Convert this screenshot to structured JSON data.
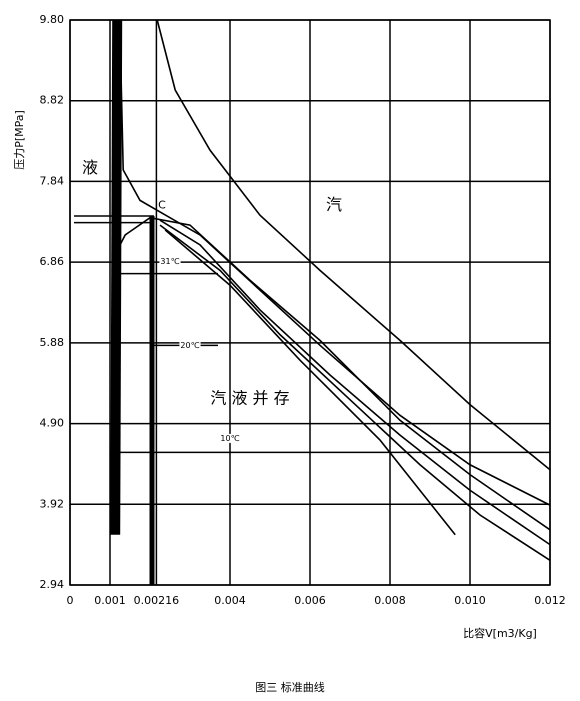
{
  "chart_data": {
    "type": "line",
    "xlabel": "比容V[m3/Kg]",
    "ylabel": "压力P[MPa]",
    "caption": "图三   标准曲线",
    "xlim": [
      0,
      0.012
    ],
    "ylim": [
      2.94,
      9.8
    ],
    "xticks": [
      0,
      0.001,
      0.00216,
      0.004,
      0.006,
      0.008,
      {
        "value": 0.01,
        "label": "0.010"
      },
      0.012
    ],
    "yticks": [
      2.94,
      3.92,
      {
        "value": 4.9,
        "label": "4.90"
      },
      5.88,
      6.86,
      7.84,
      8.82,
      {
        "value": 9.8,
        "label": "9.80"
      }
    ],
    "grid": true,
    "color": "#000",
    "series": [
      {
        "width": 10,
        "x": [
          0.00118,
          0.00113
        ],
        "values": [
          9.8,
          3.55
        ]
      },
      {
        "width": 5,
        "x": [
          0.00205,
          0.00205
        ],
        "values": [
          7.42,
          2.94
        ]
      },
      {
        "width": 1.5,
        "x": [
          0.0001,
          0.0021
        ],
        "values": [
          7.42,
          7.42
        ]
      },
      {
        "width": 1.5,
        "x": [
          0.0001,
          0.0021
        ],
        "values": [
          7.34,
          7.34
        ]
      },
      {
        "width": 1.5,
        "x": [
          0.0012,
          0.0037
        ],
        "values": [
          6.72,
          6.72
        ]
      },
      {
        "width": 1.5,
        "x": [
          0.0021,
          0.0037
        ],
        "values": [
          5.85,
          5.85
        ]
      },
      {
        "width": 1.5,
        "x": [
          0.0012,
          0.012
        ],
        "values": [
          4.55,
          4.55
        ]
      },
      {
        "width": 1.6,
        "x": [
          0.00218,
          0.00263,
          0.0035,
          0.00475,
          0.00625,
          0.00825,
          0.01,
          0.012
        ],
        "values": [
          9.8,
          8.95,
          8.22,
          7.43,
          6.76,
          5.91,
          5.13,
          4.34
        ]
      },
      {
        "width": 1.6,
        "x": [
          0.00125,
          0.00133,
          0.00175,
          0.00225,
          0.00325,
          0.00475,
          0.00625,
          0.00825,
          0.01,
          0.012
        ],
        "values": [
          9.68,
          7.98,
          7.61,
          7.47,
          7.19,
          6.52,
          5.85,
          5.0,
          4.4,
          3.91
        ]
      },
      {
        "width": 1.6,
        "x": [
          0.00108,
          0.00138,
          0.002,
          0.003,
          0.0045,
          0.00625,
          0.00825,
          0.01,
          0.012
        ],
        "values": [
          6.91,
          7.19,
          7.4,
          7.31,
          6.64,
          5.91,
          4.94,
          4.28,
          3.61
        ]
      },
      {
        "width": 1.6,
        "x": [
          0.00225,
          0.00325,
          0.00475,
          0.0065,
          0.00825,
          0.01,
          0.012
        ],
        "values": [
          7.37,
          7.07,
          6.28,
          5.49,
          4.76,
          4.09,
          3.43
        ]
      },
      {
        "width": 1.6,
        "x": [
          0.00225,
          0.00375,
          0.00525,
          0.007,
          0.00875,
          0.01025,
          0.012
        ],
        "values": [
          7.31,
          6.76,
          5.98,
          5.19,
          4.4,
          3.79,
          3.24
        ]
      },
      {
        "width": 1.6,
        "x": [
          0.00238,
          0.004,
          0.00575,
          0.00775,
          0.00963
        ],
        "values": [
          7.25,
          6.58,
          5.67,
          4.7,
          3.55
        ]
      }
    ],
    "annotations": [
      {
        "text": "液",
        "x": 0.0005,
        "y": 8.0,
        "size": "big"
      },
      {
        "text": "汽",
        "x": 0.0066,
        "y": 7.55,
        "size": "big"
      },
      {
        "text": "C",
        "x": 0.0023,
        "y": 7.55,
        "size": "normal"
      },
      {
        "text": "汽 液 并 存",
        "x": 0.0045,
        "y": 5.2,
        "size": "big"
      },
      {
        "text": "31℃",
        "x": 0.0025,
        "y": 6.87,
        "size": "small"
      },
      {
        "text": "20℃",
        "x": 0.003,
        "y": 5.85,
        "size": "small"
      },
      {
        "text": "10℃",
        "x": 0.004,
        "y": 4.72,
        "size": "small"
      }
    ]
  }
}
